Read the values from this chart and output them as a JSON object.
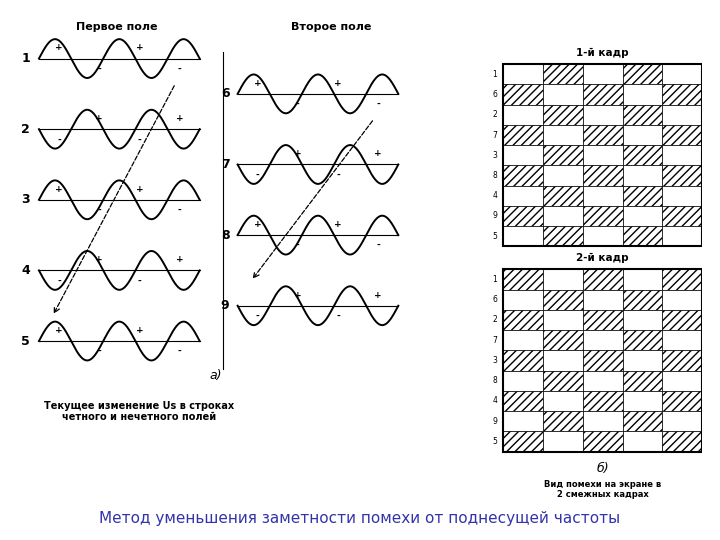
{
  "title": "Метод уменьшения заметности помехи от поднесущей частоты",
  "title_color": "#3333AA",
  "label_a": "а)",
  "label_b": "б)",
  "field1_title": "Первое поле",
  "field2_title": "Второе поле",
  "frame1_title": "1-й кадр",
  "frame2_title": "2-й кадр",
  "caption_a": "Текущее изменение Us в строках\nчетного и нечетного полей",
  "caption_b": "Вид помехи на экране в\n2 смежных кадрах",
  "row_labels_left": [
    "1",
    "2",
    "3",
    "4",
    "5"
  ],
  "row_labels_right_field2": [
    "6",
    "7",
    "8",
    "9"
  ],
  "row_labels_grid": [
    "1",
    "6",
    "2",
    "7",
    "3",
    "8",
    "4",
    "9",
    "5"
  ],
  "frame1_pattern": [
    [
      0,
      1,
      0,
      1,
      0
    ],
    [
      1,
      0,
      1,
      0,
      1
    ],
    [
      0,
      1,
      0,
      1,
      0
    ],
    [
      1,
      0,
      1,
      0,
      1
    ],
    [
      0,
      1,
      0,
      1,
      0
    ],
    [
      1,
      0,
      1,
      0,
      1
    ],
    [
      0,
      1,
      0,
      1,
      0
    ],
    [
      1,
      0,
      1,
      0,
      1
    ],
    [
      0,
      1,
      0,
      1,
      0
    ]
  ],
  "frame2_pattern": [
    [
      1,
      0,
      1,
      0,
      1
    ],
    [
      0,
      1,
      0,
      1,
      0
    ],
    [
      1,
      0,
      1,
      0,
      1
    ],
    [
      0,
      1,
      0,
      1,
      0
    ],
    [
      1,
      0,
      1,
      0,
      1
    ],
    [
      0,
      1,
      0,
      1,
      0
    ],
    [
      1,
      0,
      1,
      0,
      1
    ],
    [
      0,
      1,
      0,
      1,
      0
    ],
    [
      1,
      0,
      1,
      0,
      1
    ]
  ]
}
